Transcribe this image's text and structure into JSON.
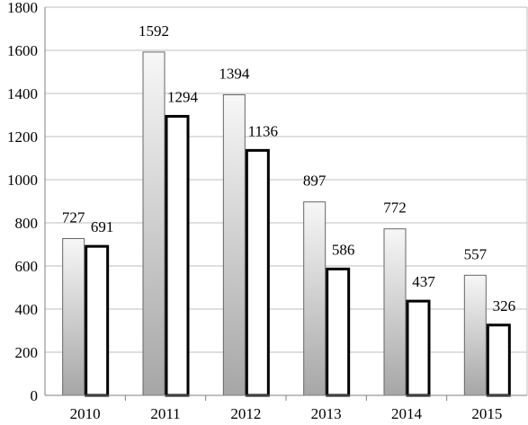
{
  "chart_data": {
    "type": "bar",
    "title": "",
    "xlabel": "",
    "ylabel": "",
    "categories": [
      "2010",
      "2011",
      "2012",
      "2013",
      "2014",
      "2015"
    ],
    "series": [
      {
        "values": [
          727,
          1592,
          1394,
          897,
          772,
          557
        ],
        "style": "gray-gradient"
      },
      {
        "values": [
          691,
          1294,
          1136,
          586,
          437,
          326
        ],
        "style": "white-bold-outline"
      }
    ],
    "ylim": [
      0,
      1800
    ],
    "yticks": [
      0,
      200,
      400,
      600,
      800,
      1000,
      1200,
      1400,
      1600,
      1800
    ],
    "grid": true,
    "legend": "none",
    "colors": {
      "gridline": "#bfbfbf",
      "series1_outline": "#666666",
      "series1_gradient_top": "#f7f7f7",
      "series1_gradient_bottom": "#a6a6a6",
      "series2_fill": "#ffffff",
      "series2_outline": "#000000"
    }
  }
}
